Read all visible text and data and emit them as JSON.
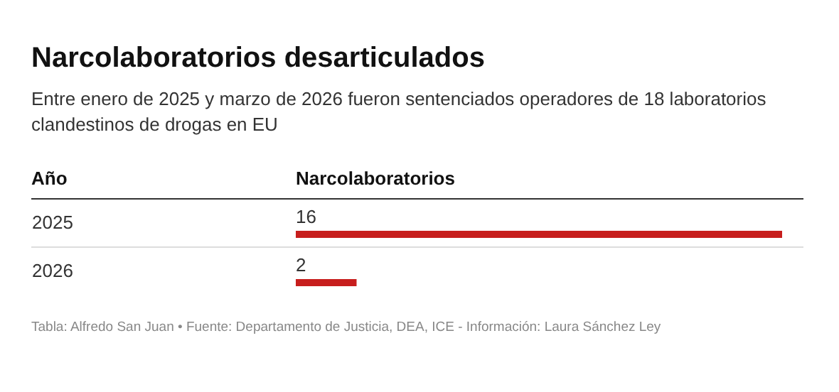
{
  "chart_data": {
    "type": "bar",
    "orientation": "horizontal",
    "title": "Narcolaboratorios desarticulados",
    "subtitle": "Entre enero de 2025 y marzo de 2026 fueron sentenciados operadores de 18 laboratorios clandestinos de drogas en EU",
    "ylabel": "Año",
    "xlabel": "Narcolaboratorios",
    "categories": [
      "2025",
      "2026"
    ],
    "values": [
      16,
      2
    ],
    "color": "#c71e1d",
    "data_labels": true,
    "tick_labels": "y",
    "grid": false,
    "annotations": [
      "Tabla: Alfredo San Juan • Fuente: Departamento de Justicia, DEA, ICE - Información: Laura Sánchez Ley"
    ]
  }
}
